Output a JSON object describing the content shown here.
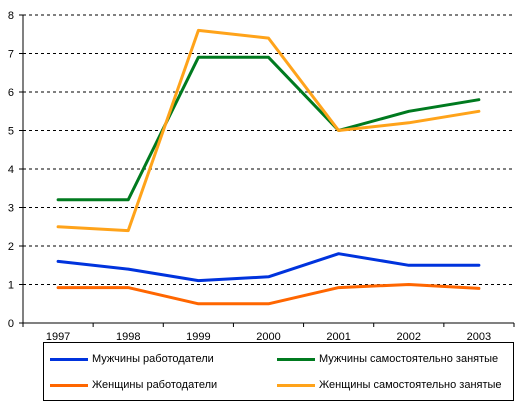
{
  "chart_data": {
    "type": "line",
    "categories": [
      "1997",
      "1998",
      "1999",
      "2000",
      "2001",
      "2002",
      "2003"
    ],
    "ylim": [
      0,
      8
    ],
    "yticks": [
      "0",
      "1",
      "2",
      "3",
      "4",
      "5",
      "6",
      "7",
      "8"
    ],
    "grid": "horizontal dashed",
    "legend_position": "bottom",
    "series": [
      {
        "name": "Мужчины работодатели",
        "color": "#0033dd",
        "values": [
          1.6,
          1.4,
          1.1,
          1.2,
          1.8,
          1.5,
          1.5
        ]
      },
      {
        "name": "Мужчины самостоятельно занятые",
        "color": "#007a1f",
        "values": [
          3.2,
          3.2,
          6.9,
          6.9,
          5.0,
          5.5,
          5.8
        ]
      },
      {
        "name": "Женщины работодатели",
        "color": "#ff6600",
        "values": [
          0.92,
          0.92,
          0.5,
          0.5,
          0.92,
          1.0,
          0.9
        ]
      },
      {
        "name": "Женщины самостоятельно занятые",
        "color": "#ffa31a",
        "values": [
          2.5,
          2.4,
          7.6,
          7.4,
          5.0,
          5.2,
          5.5
        ]
      }
    ]
  }
}
